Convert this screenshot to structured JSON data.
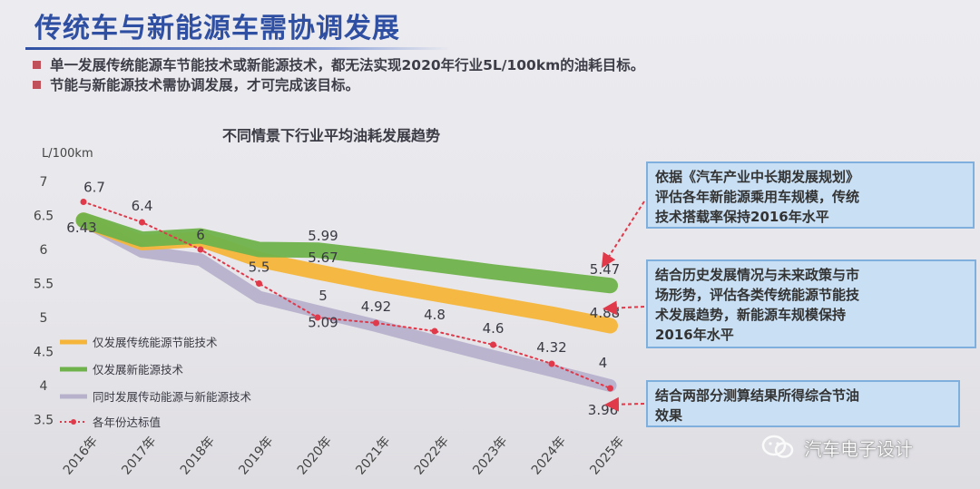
{
  "slide": {
    "title": "传统车与新能源车需协调发展",
    "bullets": [
      "单一发展传统能源车节能技术或新能源技术，都无法实现2020年行业5L/100km的油耗目标。",
      "节能与新能源技术需协调发展，才可完成该目标。"
    ]
  },
  "chart_data": {
    "type": "line",
    "title": "不同情景下行业平均油耗发展趋势",
    "ylabel": "L/100km",
    "ylim": [
      3.5,
      7
    ],
    "yticks": [
      "7",
      "6.5",
      "6",
      "5.5",
      "5",
      "4.5",
      "4",
      "3.5"
    ],
    "categories": [
      "2016年",
      "2017年",
      "2018年",
      "2019年",
      "2020年",
      "2021年",
      "2022年",
      "2023年",
      "2024年",
      "2025年"
    ],
    "series": [
      {
        "name": "仅发展传统能源节能技术",
        "color": "#f5b53a",
        "values": [
          6.43,
          6.1,
          6.15,
          5.85,
          5.67,
          5.5,
          5.35,
          5.2,
          5.05,
          4.88
        ]
      },
      {
        "name": "仅发展新能源技术",
        "color": "#6fb24b",
        "values": [
          6.43,
          6.15,
          6.2,
          6.0,
          5.99,
          5.89,
          5.78,
          5.67,
          5.57,
          5.47
        ]
      },
      {
        "name": "同时发展传动能源与新能源技术",
        "color": "#b7b1cc",
        "values": [
          6.43,
          5.97,
          5.85,
          5.3,
          5.09,
          4.88,
          4.65,
          4.43,
          4.22,
          4.0
        ]
      },
      {
        "name": "各年份达标值",
        "color": "#e0394a",
        "values": [
          6.7,
          6.4,
          6.0,
          5.5,
          5.0,
          4.92,
          4.8,
          4.6,
          4.32,
          3.96
        ]
      }
    ],
    "annotations": [
      {
        "text": "6.7",
        "x": 0,
        "y": 6.7
      },
      {
        "text": "6.43",
        "x": 0,
        "y": 6.43
      },
      {
        "text": "6.4",
        "x": 1,
        "y": 6.4
      },
      {
        "text": "6",
        "x": 2,
        "y": 6.0
      },
      {
        "text": "5.5",
        "x": 3,
        "y": 5.5
      },
      {
        "text": "5.99",
        "x": 4,
        "y": 5.99
      },
      {
        "text": "5.67",
        "x": 4,
        "y": 5.67
      },
      {
        "text": "5",
        "x": 4,
        "y": 5.0
      },
      {
        "text": "5.09",
        "x": 4,
        "y": 5.09
      },
      {
        "text": "4.92",
        "x": 5,
        "y": 4.92
      },
      {
        "text": "4.8",
        "x": 6,
        "y": 4.8
      },
      {
        "text": "4.6",
        "x": 7,
        "y": 4.6
      },
      {
        "text": "4.32",
        "x": 8,
        "y": 4.32
      },
      {
        "text": "5.47",
        "x": 9,
        "y": 5.47
      },
      {
        "text": "4.88",
        "x": 9,
        "y": 4.88
      },
      {
        "text": "4",
        "x": 9,
        "y": 4.0
      },
      {
        "text": "3.96",
        "x": 9,
        "y": 3.96
      }
    ],
    "legend_position": "bottom-left"
  },
  "callouts": [
    {
      "text": "依据《汽车产业中长期发展规划》\n评估各年新能源乘用车规模，传统\n技术搭载率保持2016年水平"
    },
    {
      "text": "结合历史发展情况与未来政策与市\n场形势，评估各类传统能源节能技\n术发展趋势，新能源车规模保持\n2016年水平"
    },
    {
      "text": "结合两部分测算结果所得综合节油\n效果"
    }
  ],
  "watermark": {
    "text": "汽车电子设计"
  }
}
